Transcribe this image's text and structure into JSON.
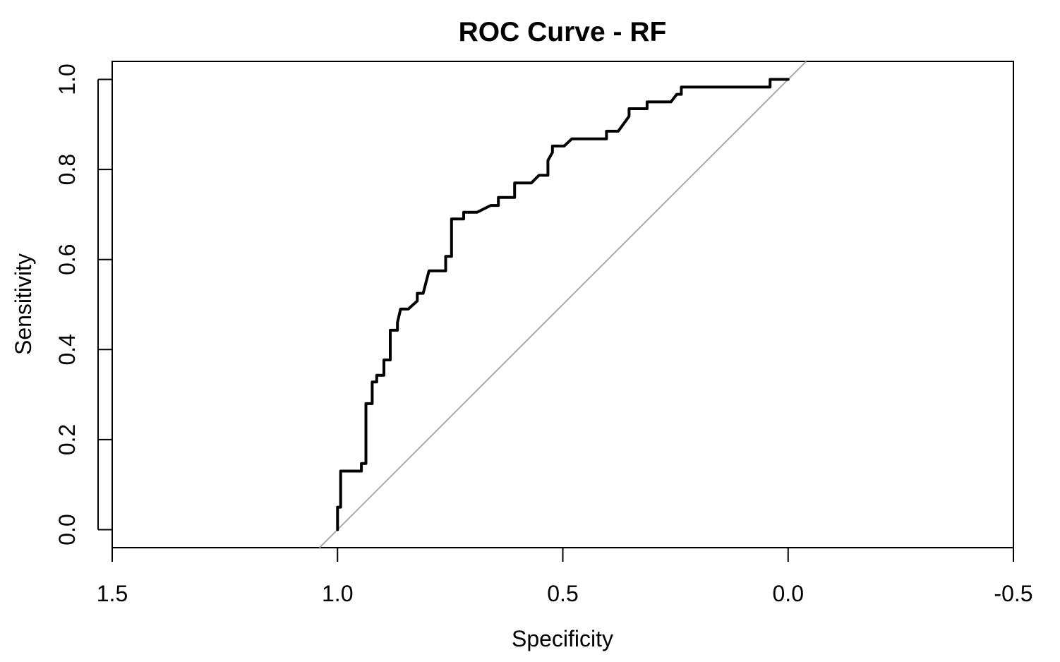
{
  "chart_data": {
    "type": "line",
    "title": "ROC Curve - RF",
    "xlabel": "Specificity",
    "ylabel": "Sensitivity",
    "xlim": [
      1.5,
      -0.5
    ],
    "ylim": [
      -0.04,
      1.04
    ],
    "x_reversed": true,
    "grid": false,
    "legend": "none",
    "xticks": [
      1.5,
      1.0,
      0.5,
      0.0,
      -0.5
    ],
    "xtick_labels": [
      "1.5",
      "1.0",
      "0.5",
      "0.0",
      "-0.5"
    ],
    "yticks": [
      0.0,
      0.2,
      0.4,
      0.6,
      0.8,
      1.0
    ],
    "ytick_labels": [
      "0.0",
      "0.2",
      "0.4",
      "0.6",
      "0.8",
      "1.0"
    ],
    "reference_line": {
      "intercept": 1,
      "slope": -1
    },
    "colors": {
      "curve": "#000000",
      "reference": "#aaaaaa"
    },
    "series": [
      {
        "x": [
          1.0,
          1.0,
          0.993,
          0.993,
          0.987,
          0.987,
          0.947,
          0.947,
          0.937,
          0.937,
          0.923,
          0.923,
          0.913,
          0.913,
          0.897,
          0.897,
          0.883,
          0.883,
          0.867,
          0.867,
          0.86,
          0.843,
          0.823,
          0.823,
          0.81,
          0.797,
          0.78,
          0.76,
          0.76,
          0.747,
          0.747,
          0.72,
          0.72,
          0.69,
          0.69,
          0.66,
          0.643,
          0.643,
          0.607,
          0.607,
          0.57,
          0.57,
          0.553,
          0.533,
          0.533,
          0.523,
          0.523,
          0.497,
          0.48,
          0.453,
          0.403,
          0.403,
          0.377,
          0.377,
          0.353,
          0.353,
          0.313,
          0.313,
          0.26,
          0.247,
          0.237,
          0.237,
          0.04,
          0.04,
          0.0
        ],
        "y": [
          0.0,
          0.05,
          0.05,
          0.13,
          0.13,
          0.13,
          0.13,
          0.147,
          0.147,
          0.28,
          0.28,
          0.328,
          0.328,
          0.343,
          0.343,
          0.377,
          0.377,
          0.443,
          0.443,
          0.46,
          0.49,
          0.49,
          0.508,
          0.525,
          0.525,
          0.575,
          0.575,
          0.575,
          0.607,
          0.607,
          0.69,
          0.69,
          0.705,
          0.705,
          0.705,
          0.72,
          0.72,
          0.738,
          0.738,
          0.77,
          0.77,
          0.77,
          0.787,
          0.787,
          0.82,
          0.838,
          0.852,
          0.852,
          0.868,
          0.868,
          0.868,
          0.885,
          0.885,
          0.885,
          0.918,
          0.935,
          0.935,
          0.95,
          0.95,
          0.967,
          0.967,
          0.983,
          0.983,
          1.0,
          1.0
        ]
      }
    ]
  }
}
